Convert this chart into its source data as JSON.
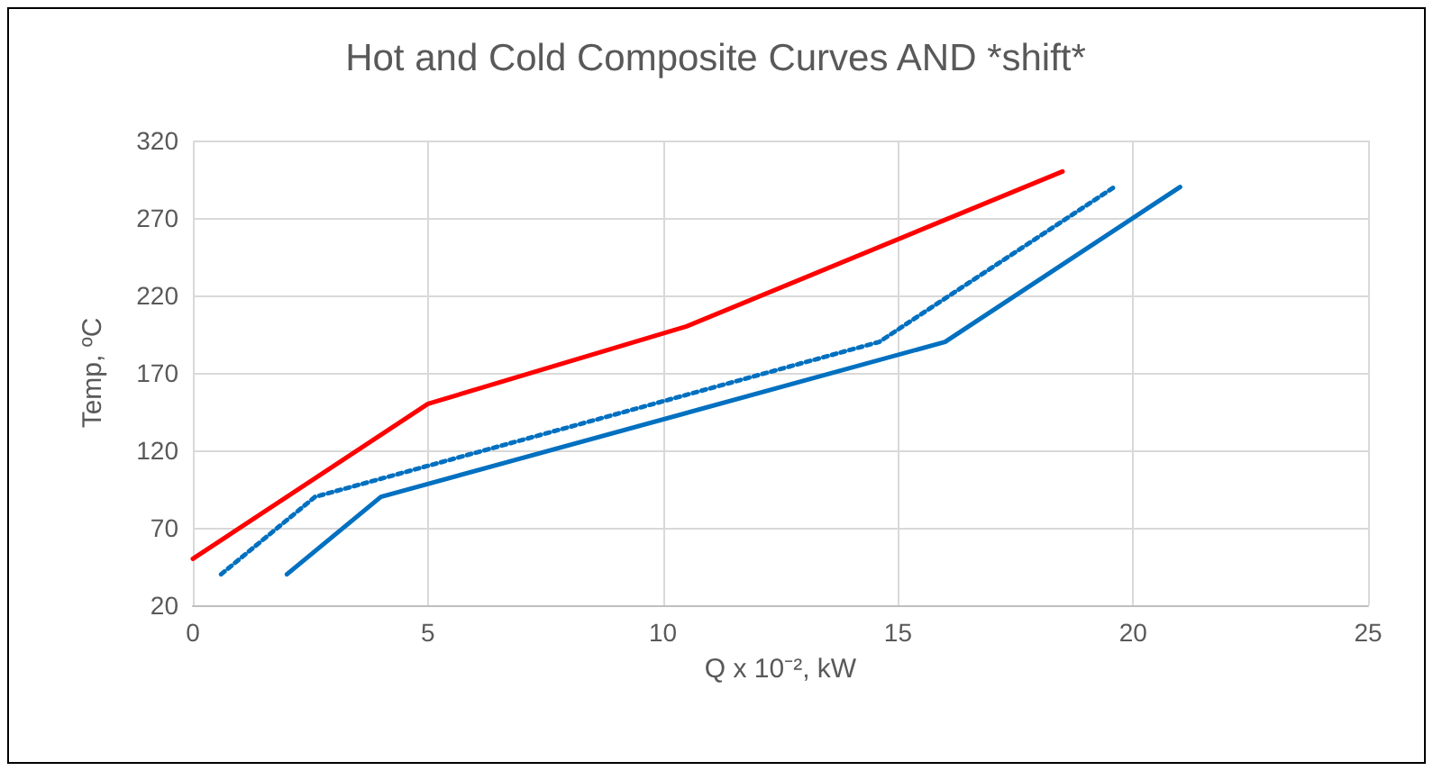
{
  "chart_data": {
    "type": "line",
    "title": "Hot and Cold Composite Curves AND *shift*",
    "xlabel": "Q x 10⁻², kW",
    "ylabel": "Temp, ºC",
    "series": [
      {
        "color": "#ff0000",
        "x": [
          0,
          5,
          10.5,
          18.5
        ],
        "values": [
          50,
          150,
          200,
          300
        ],
        "line_style": "solid"
      },
      {
        "color": "#0070c0",
        "x": [
          2,
          4,
          16,
          21
        ],
        "values": [
          40,
          90,
          190,
          290
        ],
        "line_style": "solid"
      },
      {
        "color": "#0070c0",
        "x": [
          0.6,
          2.6,
          14.6,
          19.6
        ],
        "values": [
          40,
          90,
          190,
          290
        ],
        "line_style": "dotted"
      }
    ],
    "xlim": [
      0,
      25
    ],
    "xticks": [
      0,
      5,
      10,
      15,
      20,
      25
    ],
    "ylim": [
      20,
      320
    ],
    "yticks": [
      20,
      70,
      120,
      170,
      220,
      270,
      320
    ],
    "grid": true,
    "marker": "none"
  }
}
